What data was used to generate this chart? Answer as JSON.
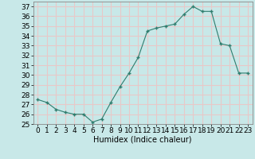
{
  "x": [
    0,
    1,
    2,
    3,
    4,
    5,
    6,
    7,
    8,
    9,
    10,
    11,
    12,
    13,
    14,
    15,
    16,
    17,
    18,
    19,
    20,
    21,
    22,
    23
  ],
  "y": [
    27.5,
    27.2,
    26.5,
    26.2,
    26.0,
    26.0,
    25.2,
    25.5,
    27.2,
    28.8,
    30.2,
    31.8,
    34.5,
    34.8,
    35.0,
    35.2,
    36.2,
    37.0,
    36.5,
    36.5,
    33.2,
    33.0,
    30.2,
    30.2
  ],
  "line_color": "#2e7d6e",
  "marker": "+",
  "marker_size": 3.5,
  "marker_linewidth": 1.0,
  "bg_color": "#c8e8e8",
  "grid_color": "#e8c8c8",
  "xlabel": "Humidex (Indice chaleur)",
  "xlim": [
    -0.5,
    23.5
  ],
  "ylim": [
    25,
    37.5
  ],
  "yticks": [
    25,
    26,
    27,
    28,
    29,
    30,
    31,
    32,
    33,
    34,
    35,
    36,
    37
  ],
  "xticks": [
    0,
    1,
    2,
    3,
    4,
    5,
    6,
    7,
    8,
    9,
    10,
    11,
    12,
    13,
    14,
    15,
    16,
    17,
    18,
    19,
    20,
    21,
    22,
    23
  ],
  "xlabel_fontsize": 7,
  "tick_fontsize": 6.5
}
